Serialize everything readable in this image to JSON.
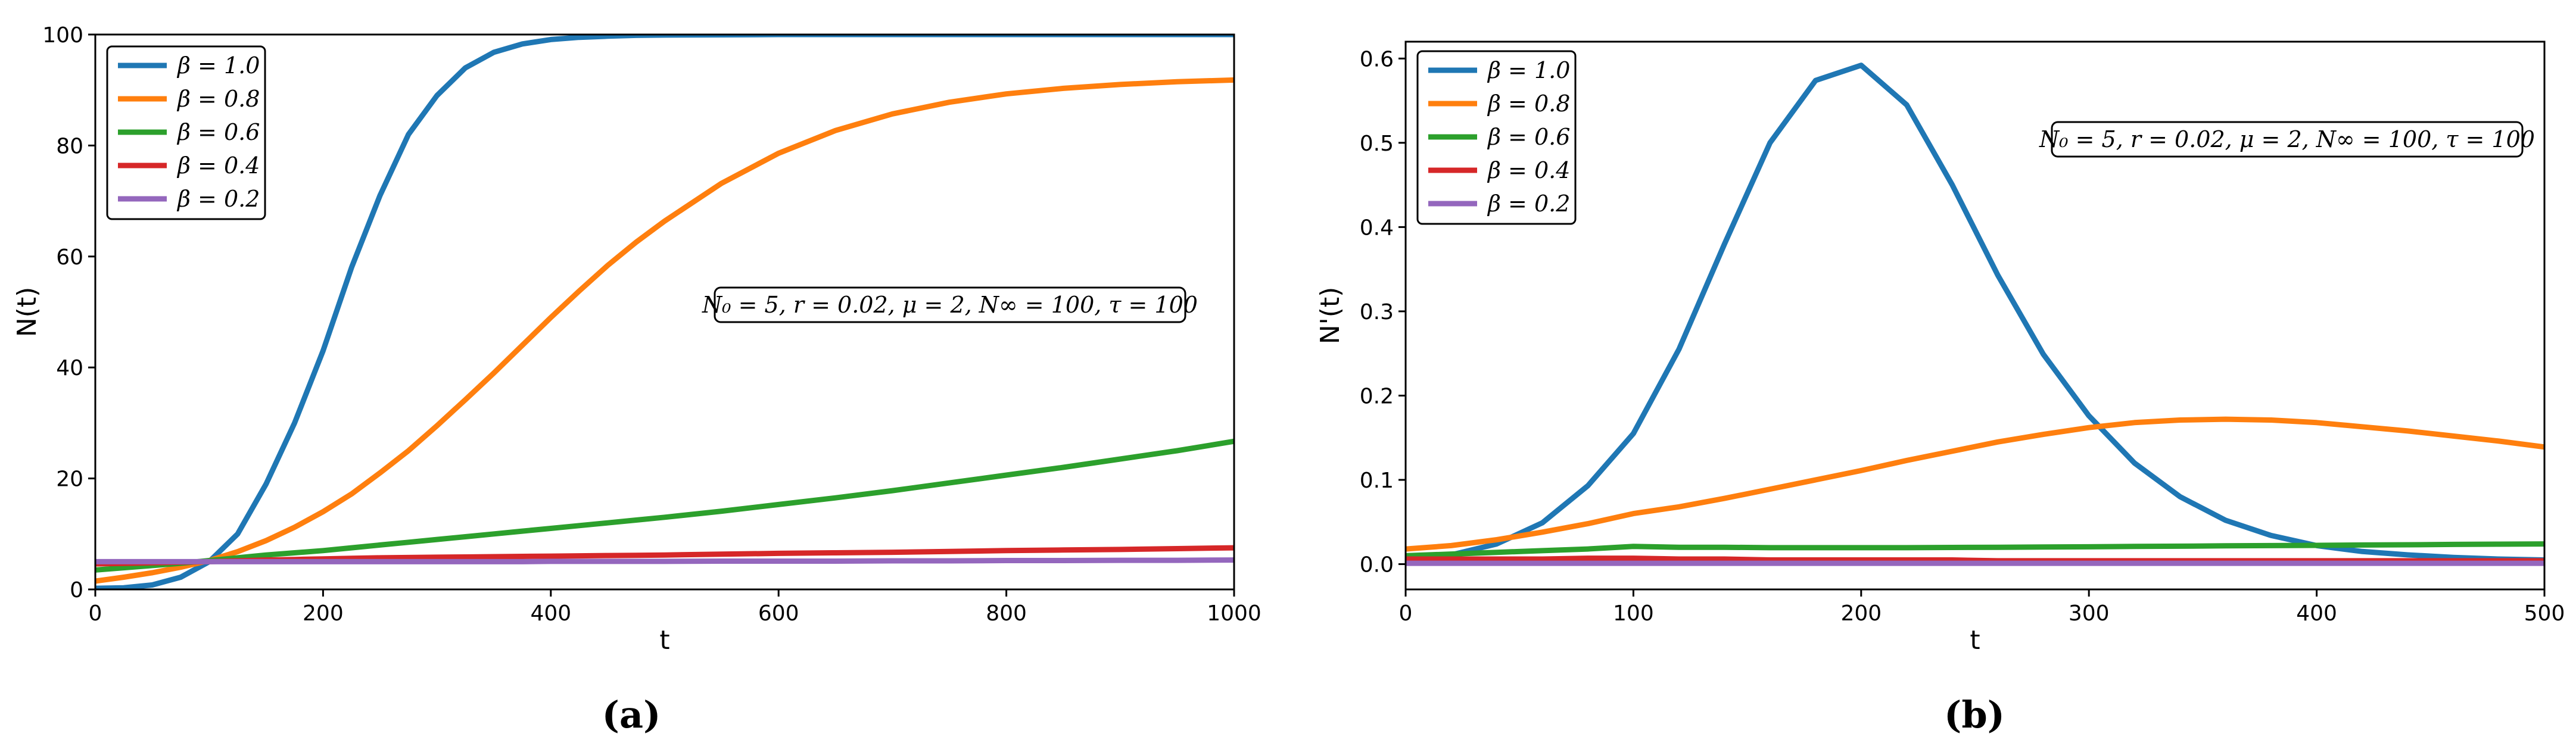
{
  "figure": {
    "series_colors": {
      "β = 1.0": "#1f77b4",
      "β = 0.8": "#ff7f0e",
      "β = 0.6": "#2ca02c",
      "β = 0.4": "#d62728",
      "β = 0.2": "#9467bd"
    }
  },
  "chart_data": [
    {
      "type": "line",
      "caption": "(a)",
      "title": "",
      "xlabel": "t",
      "ylabel": "N(t)",
      "xlim": [
        0,
        1000
      ],
      "ylim": [
        0,
        100
      ],
      "xticks": [
        0,
        200,
        400,
        600,
        800,
        1000
      ],
      "yticks": [
        0,
        20,
        40,
        60,
        80,
        100
      ],
      "legend": [
        "β = 1.0",
        "β = 0.8",
        "β = 0.6",
        "β = 0.4",
        "β = 0.2"
      ],
      "legend_position": "top-left",
      "annotation": "N₀ = 5, r = 0.02, μ = 2, N∞ = 100, τ = 100",
      "x": [
        0,
        25,
        50,
        75,
        100,
        125,
        150,
        175,
        200,
        225,
        250,
        275,
        300,
        325,
        350,
        375,
        400,
        425,
        450,
        475,
        500,
        550,
        600,
        650,
        700,
        750,
        800,
        850,
        900,
        950,
        1000
      ],
      "series": [
        {
          "name": "β = 1.0",
          "values": [
            0.2,
            0.3,
            0.8,
            2.2,
            5,
            10,
            19,
            30,
            43,
            58,
            71,
            82,
            89,
            94,
            96.8,
            98.3,
            99.1,
            99.5,
            99.7,
            99.85,
            99.9,
            99.95,
            100,
            100,
            100,
            100,
            100,
            100,
            100,
            100,
            100
          ]
        },
        {
          "name": "β = 0.8",
          "values": [
            1.5,
            2.2,
            3.0,
            4.0,
            5.2,
            6.8,
            8.8,
            11.2,
            14,
            17.2,
            21,
            25,
            29.5,
            34.2,
            39,
            44,
            49,
            53.8,
            58.4,
            62.6,
            66.4,
            73.2,
            78.6,
            82.7,
            85.7,
            87.8,
            89.3,
            90.3,
            91,
            91.5,
            91.8
          ]
        },
        {
          "name": "β = 0.6",
          "values": [
            3.5,
            3.9,
            4.3,
            4.7,
            5.2,
            5.7,
            6.2,
            6.6,
            7.0,
            7.5,
            8.0,
            8.5,
            9.0,
            9.5,
            10.0,
            10.5,
            11.0,
            11.5,
            12.0,
            12.5,
            13.0,
            14.1,
            15.3,
            16.5,
            17.8,
            19.2,
            20.6,
            22.0,
            23.5,
            25.0,
            26.7
          ]
        },
        {
          "name": "β = 0.4",
          "values": [
            4.6,
            4.7,
            4.8,
            4.9,
            5.0,
            5.15,
            5.3,
            5.4,
            5.5,
            5.6,
            5.7,
            5.75,
            5.8,
            5.85,
            5.9,
            5.95,
            6.0,
            6.05,
            6.1,
            6.15,
            6.2,
            6.35,
            6.5,
            6.6,
            6.7,
            6.85,
            7.0,
            7.1,
            7.2,
            7.35,
            7.5
          ]
        },
        {
          "name": "β = 0.2",
          "values": [
            5.0,
            5.0,
            5.0,
            5.0,
            5.0,
            5.0,
            5.0,
            5.0,
            5.0,
            5.0,
            5.0,
            5.0,
            5.0,
            5.0,
            5.0,
            5.0,
            5.05,
            5.05,
            5.05,
            5.05,
            5.05,
            5.1,
            5.1,
            5.1,
            5.15,
            5.15,
            5.2,
            5.2,
            5.25,
            5.25,
            5.3
          ]
        }
      ]
    },
    {
      "type": "line",
      "caption": "(b)",
      "title": "",
      "xlabel": "t",
      "ylabel": "N'(t)",
      "xlim": [
        0,
        500
      ],
      "ylim": [
        -0.03,
        0.62
      ],
      "xticks": [
        0,
        100,
        200,
        300,
        400,
        500
      ],
      "yticks": [
        "0.0",
        "0.1",
        "0.2",
        "0.3",
        "0.4",
        "0.5",
        "0.6"
      ],
      "legend": [
        "β = 1.0",
        "β = 0.8",
        "β = 0.6",
        "β = 0.4",
        "β = 0.2"
      ],
      "legend_position": "top-left",
      "annotation": "N₀ = 5, r = 0.02, μ = 2, N∞ = 100, τ = 100",
      "x": [
        0,
        20,
        40,
        60,
        80,
        100,
        120,
        140,
        160,
        180,
        200,
        220,
        240,
        260,
        280,
        300,
        320,
        340,
        360,
        380,
        400,
        420,
        440,
        460,
        480,
        500
      ],
      "series": [
        {
          "name": "β = 1.0",
          "values": [
            0.005,
            0.011,
            0.024,
            0.049,
            0.093,
            0.155,
            0.255,
            0.38,
            0.5,
            0.574,
            0.592,
            0.545,
            0.45,
            0.343,
            0.249,
            0.176,
            0.12,
            0.08,
            0.052,
            0.034,
            0.022,
            0.015,
            0.011,
            0.008,
            0.006,
            0.005
          ]
        },
        {
          "name": "β = 0.8",
          "values": [
            0.018,
            0.022,
            0.029,
            0.038,
            0.048,
            0.06,
            0.068,
            0.078,
            0.089,
            0.1,
            0.111,
            0.123,
            0.134,
            0.145,
            0.154,
            0.162,
            0.168,
            0.171,
            0.172,
            0.171,
            0.168,
            0.163,
            0.158,
            0.152,
            0.146,
            0.139
          ]
        },
        {
          "name": "β = 0.6",
          "values": [
            0.01,
            0.012,
            0.014,
            0.016,
            0.018,
            0.021,
            0.02,
            0.02,
            0.0195,
            0.0195,
            0.0195,
            0.0195,
            0.0198,
            0.02,
            0.0203,
            0.0206,
            0.021,
            0.0213,
            0.0217,
            0.022,
            0.0223,
            0.0227,
            0.023,
            0.0234,
            0.0237,
            0.024
          ]
        },
        {
          "name": "β = 0.4",
          "values": [
            0.006,
            0.006,
            0.006,
            0.006,
            0.007,
            0.007,
            0.006,
            0.006,
            0.005,
            0.005,
            0.005,
            0.005,
            0.005,
            0.004,
            0.004,
            0.004,
            0.004,
            0.004,
            0.004,
            0.004,
            0.004,
            0.004,
            0.004,
            0.004,
            0.004,
            0.004
          ]
        },
        {
          "name": "β = 0.2",
          "values": [
            0.001,
            0.001,
            0.001,
            0.001,
            0.001,
            0.001,
            0.001,
            0.001,
            0.001,
            0.001,
            0.001,
            0.001,
            0.001,
            0.001,
            0.001,
            0.001,
            0.001,
            0.001,
            0.001,
            0.001,
            0.001,
            0.001,
            0.001,
            0.001,
            0.001,
            0.001
          ]
        }
      ]
    }
  ]
}
